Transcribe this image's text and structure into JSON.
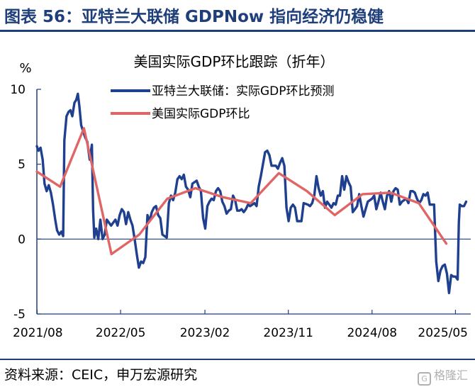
{
  "figure_title": "图表 56：亚特兰大联储 GDPNow 指向经济仍稳健",
  "source_text": "资料来源：CEIC，申万宏源研究",
  "watermark": "格隆汇",
  "watermark_logo": "G",
  "colors": {
    "title": "#1f3f7a",
    "gdpnow": "#1f3f8f",
    "actual": "#e06666",
    "axis": "#1f3f7a"
  },
  "chart_data": {
    "type": "line",
    "title": "美国实际GDP环比跟踪（折年）",
    "ylabel": "%",
    "ylim": [
      -5,
      10
    ],
    "yticks": [
      -5,
      0,
      5,
      10
    ],
    "xlim": [
      "2021-07-31",
      "2025-06-20"
    ],
    "xticks": [
      {
        "date": "2021-08-01",
        "label": "2021/08"
      },
      {
        "date": "2022-05-01",
        "label": "2022/05"
      },
      {
        "date": "2023-02-01",
        "label": "2023/02"
      },
      {
        "date": "2023-11-01",
        "label": "2023/11"
      },
      {
        "date": "2024-08-01",
        "label": "2024/08"
      },
      {
        "date": "2025-05-01",
        "label": "2025/05"
      }
    ],
    "legend_position": "top-right",
    "series": [
      {
        "name": "亚特兰大联储：实际GDP环比预测",
        "points": [
          [
            "2021-07-31",
            6.2
          ],
          [
            "2021-08-05",
            5.9
          ],
          [
            "2021-08-12",
            6.1
          ],
          [
            "2021-08-19",
            5.3
          ],
          [
            "2021-08-25",
            3.7
          ],
          [
            "2021-09-01",
            3.2
          ],
          [
            "2021-09-08",
            3.6
          ],
          [
            "2021-09-15",
            3.1
          ],
          [
            "2021-09-22",
            2.3
          ],
          [
            "2021-09-29",
            1.3
          ],
          [
            "2021-10-05",
            0.6
          ],
          [
            "2021-10-12",
            0.3
          ],
          [
            "2021-10-19",
            0.5
          ],
          [
            "2021-10-25",
            0.2
          ],
          [
            "2021-10-29",
            6.6
          ],
          [
            "2021-11-05",
            8.2
          ],
          [
            "2021-11-12",
            8.5
          ],
          [
            "2021-11-18",
            8.6
          ],
          [
            "2021-11-24",
            8.2
          ],
          [
            "2021-12-01",
            9.1
          ],
          [
            "2021-12-07",
            9.3
          ],
          [
            "2021-12-12",
            9.7
          ],
          [
            "2021-12-17",
            8.9
          ],
          [
            "2021-12-23",
            7.6
          ],
          [
            "2022-01-05",
            6.8
          ],
          [
            "2022-01-12",
            6.5
          ],
          [
            "2022-01-20",
            5.3
          ],
          [
            "2022-01-27",
            6.3
          ],
          [
            "2022-01-31",
            2.0
          ],
          [
            "2022-02-04",
            0.1
          ],
          [
            "2022-02-10",
            0.7
          ],
          [
            "2022-02-17",
            0.0
          ],
          [
            "2022-02-24",
            1.3
          ],
          [
            "2022-03-03",
            0.0
          ],
          [
            "2022-03-10",
            0.3
          ],
          [
            "2022-03-17",
            1.3
          ],
          [
            "2022-03-24",
            1.1
          ],
          [
            "2022-03-31",
            0.9
          ],
          [
            "2022-04-07",
            1.1
          ],
          [
            "2022-04-14",
            1.3
          ],
          [
            "2022-04-21",
            0.9
          ],
          [
            "2022-04-28",
            1.6
          ],
          [
            "2022-05-05",
            2.0
          ],
          [
            "2022-05-12",
            1.8
          ],
          [
            "2022-05-19",
            1.0
          ],
          [
            "2022-05-26",
            1.8
          ],
          [
            "2022-06-02",
            1.3
          ],
          [
            "2022-06-09",
            0.9
          ],
          [
            "2022-06-16",
            0.0
          ],
          [
            "2022-06-23",
            -1.0
          ],
          [
            "2022-06-30",
            -1.9
          ],
          [
            "2022-07-07",
            -1.5
          ],
          [
            "2022-07-14",
            -1.6
          ],
          [
            "2022-07-21",
            -1.2
          ],
          [
            "2022-07-28",
            1.6
          ],
          [
            "2022-08-04",
            1.2
          ],
          [
            "2022-08-11",
            1.8
          ],
          [
            "2022-08-18",
            2.1
          ],
          [
            "2022-08-25",
            2.2
          ],
          [
            "2022-09-01",
            1.6
          ],
          [
            "2022-09-08",
            1.4
          ],
          [
            "2022-09-15",
            0.3
          ],
          [
            "2022-09-22",
            0.2
          ],
          [
            "2022-09-29",
            0.1
          ],
          [
            "2022-10-06",
            2.4
          ],
          [
            "2022-10-13",
            2.9
          ],
          [
            "2022-10-20",
            2.6
          ],
          [
            "2022-10-27",
            3.1
          ],
          [
            "2022-11-03",
            4.0
          ],
          [
            "2022-11-10",
            4.2
          ],
          [
            "2022-11-17",
            4.0
          ],
          [
            "2022-11-24",
            4.3
          ],
          [
            "2022-12-01",
            3.5
          ],
          [
            "2022-12-08",
            3.3
          ],
          [
            "2022-12-15",
            2.8
          ],
          [
            "2022-12-22",
            3.7
          ],
          [
            "2022-12-29",
            3.8
          ],
          [
            "2023-01-05",
            3.9
          ],
          [
            "2023-01-12",
            3.5
          ],
          [
            "2023-01-19",
            3.2
          ],
          [
            "2023-01-26",
            1.4
          ],
          [
            "2023-02-02",
            0.7
          ],
          [
            "2023-02-09",
            2.2
          ],
          [
            "2023-02-16",
            2.5
          ],
          [
            "2023-02-23",
            2.7
          ],
          [
            "2023-03-02",
            2.6
          ],
          [
            "2023-03-09",
            3.2
          ],
          [
            "2023-03-16",
            3.4
          ],
          [
            "2023-03-23",
            3.2
          ],
          [
            "2023-03-30",
            2.5
          ],
          [
            "2023-04-06",
            2.2
          ],
          [
            "2023-04-13",
            1.7
          ],
          [
            "2023-04-20",
            1.9
          ],
          [
            "2023-04-27",
            2.0
          ],
          [
            "2023-05-04",
            2.9
          ],
          [
            "2023-05-11",
            2.6
          ],
          [
            "2023-05-18",
            1.9
          ],
          [
            "2023-05-25",
            1.9
          ],
          [
            "2023-06-01",
            2.0
          ],
          [
            "2023-06-08",
            1.8
          ],
          [
            "2023-06-15",
            2.0
          ],
          [
            "2023-06-22",
            2.3
          ],
          [
            "2023-06-29",
            2.2
          ],
          [
            "2023-07-06",
            2.3
          ],
          [
            "2023-07-13",
            2.4
          ],
          [
            "2023-07-20",
            2.2
          ],
          [
            "2023-07-27",
            3.5
          ],
          [
            "2023-08-03",
            4.2
          ],
          [
            "2023-08-10",
            5.0
          ],
          [
            "2023-08-17",
            5.8
          ],
          [
            "2023-08-24",
            5.9
          ],
          [
            "2023-08-31",
            5.6
          ],
          [
            "2023-09-07",
            4.9
          ],
          [
            "2023-09-14",
            4.9
          ],
          [
            "2023-09-21",
            4.9
          ],
          [
            "2023-09-28",
            4.7
          ],
          [
            "2023-10-05",
            5.1
          ],
          [
            "2023-10-12",
            5.4
          ],
          [
            "2023-10-19",
            4.9
          ],
          [
            "2023-10-26",
            2.1
          ],
          [
            "2023-11-02",
            1.2
          ],
          [
            "2023-11-09",
            2.1
          ],
          [
            "2023-11-16",
            2.3
          ],
          [
            "2023-11-23",
            2.1
          ],
          [
            "2023-11-30",
            1.2
          ],
          [
            "2023-12-07",
            1.2
          ],
          [
            "2023-12-14",
            1.2
          ],
          [
            "2023-12-21",
            2.4
          ],
          [
            "2024-01-04",
            2.3
          ],
          [
            "2024-01-11",
            2.2
          ],
          [
            "2024-01-18",
            2.4
          ],
          [
            "2024-01-25",
            2.9
          ],
          [
            "2024-02-01",
            4.2
          ],
          [
            "2024-02-08",
            3.4
          ],
          [
            "2024-02-15",
            2.9
          ],
          [
            "2024-02-22",
            3.2
          ],
          [
            "2024-02-29",
            2.1
          ],
          [
            "2024-03-07",
            2.5
          ],
          [
            "2024-03-14",
            2.3
          ],
          [
            "2024-03-21",
            2.1
          ],
          [
            "2024-03-28",
            2.4
          ],
          [
            "2024-04-04",
            2.3
          ],
          [
            "2024-04-11",
            2.9
          ],
          [
            "2024-04-18",
            2.9
          ],
          [
            "2024-04-25",
            4.2
          ],
          [
            "2024-05-02",
            3.3
          ],
          [
            "2024-05-09",
            4.2
          ],
          [
            "2024-05-16",
            3.8
          ],
          [
            "2024-05-23",
            3.5
          ],
          [
            "2024-05-30",
            1.8
          ],
          [
            "2024-06-06",
            2.0
          ],
          [
            "2024-06-13",
            2.2
          ],
          [
            "2024-06-20",
            3.0
          ],
          [
            "2024-06-27",
            2.2
          ],
          [
            "2024-07-04",
            1.5
          ],
          [
            "2024-07-11",
            2.0
          ],
          [
            "2024-07-18",
            2.5
          ],
          [
            "2024-07-25",
            2.6
          ],
          [
            "2024-08-01",
            2.7
          ],
          [
            "2024-08-08",
            2.9
          ],
          [
            "2024-08-15",
            2.0
          ],
          [
            "2024-08-22",
            2.5
          ],
          [
            "2024-08-29",
            3.1
          ],
          [
            "2024-09-05",
            2.5
          ],
          [
            "2024-09-12",
            2.0
          ],
          [
            "2024-09-19",
            2.9
          ],
          [
            "2024-09-26",
            3.2
          ],
          [
            "2024-10-03",
            2.5
          ],
          [
            "2024-10-10",
            3.2
          ],
          [
            "2024-10-17",
            3.4
          ],
          [
            "2024-10-24",
            3.3
          ],
          [
            "2024-10-31",
            2.3
          ],
          [
            "2024-11-07",
            2.5
          ],
          [
            "2024-11-14",
            2.6
          ],
          [
            "2024-11-21",
            2.7
          ],
          [
            "2024-11-28",
            2.4
          ],
          [
            "2024-12-05",
            3.2
          ],
          [
            "2024-12-12",
            3.2
          ],
          [
            "2024-12-19",
            3.1
          ],
          [
            "2024-12-26",
            2.7
          ],
          [
            "2025-01-02",
            2.4
          ],
          [
            "2025-01-09",
            2.6
          ],
          [
            "2025-01-16",
            3.0
          ],
          [
            "2025-01-23",
            2.9
          ],
          [
            "2025-01-30",
            3.1
          ],
          [
            "2025-02-06",
            2.3
          ],
          [
            "2025-02-13",
            2.3
          ],
          [
            "2025-02-20",
            2.3
          ],
          [
            "2025-02-27",
            -1.5
          ],
          [
            "2025-03-06",
            -2.8
          ],
          [
            "2025-03-13",
            -2.1
          ],
          [
            "2025-03-20",
            -1.8
          ],
          [
            "2025-03-27",
            -1.7
          ],
          [
            "2025-04-03",
            -2.3
          ],
          [
            "2025-04-10",
            -3.6
          ],
          [
            "2025-04-17",
            -2.4
          ],
          [
            "2025-04-24",
            -2.5
          ],
          [
            "2025-05-01",
            -2.5
          ],
          [
            "2025-05-08",
            -2.7
          ],
          [
            "2025-05-12",
            1.1
          ],
          [
            "2025-05-15",
            2.3
          ],
          [
            "2025-05-22",
            2.2
          ],
          [
            "2025-05-29",
            2.2
          ],
          [
            "2025-06-05",
            2.5
          ]
        ]
      },
      {
        "name": "美国实际GDP环比",
        "points": [
          [
            "2021-07-31",
            4.5
          ],
          [
            "2021-10-15",
            3.5
          ],
          [
            "2022-01-01",
            7.4
          ],
          [
            "2022-04-01",
            -1.0
          ],
          [
            "2022-07-01",
            0.3
          ],
          [
            "2022-10-01",
            2.7
          ],
          [
            "2023-01-01",
            3.4
          ],
          [
            "2023-04-01",
            2.8
          ],
          [
            "2023-07-01",
            2.4
          ],
          [
            "2023-10-01",
            4.4
          ],
          [
            "2024-01-01",
            3.2
          ],
          [
            "2024-04-01",
            1.6
          ],
          [
            "2024-07-01",
            3.0
          ],
          [
            "2024-10-01",
            3.1
          ],
          [
            "2025-01-01",
            2.4
          ],
          [
            "2025-04-01",
            -0.3
          ]
        ]
      }
    ]
  }
}
